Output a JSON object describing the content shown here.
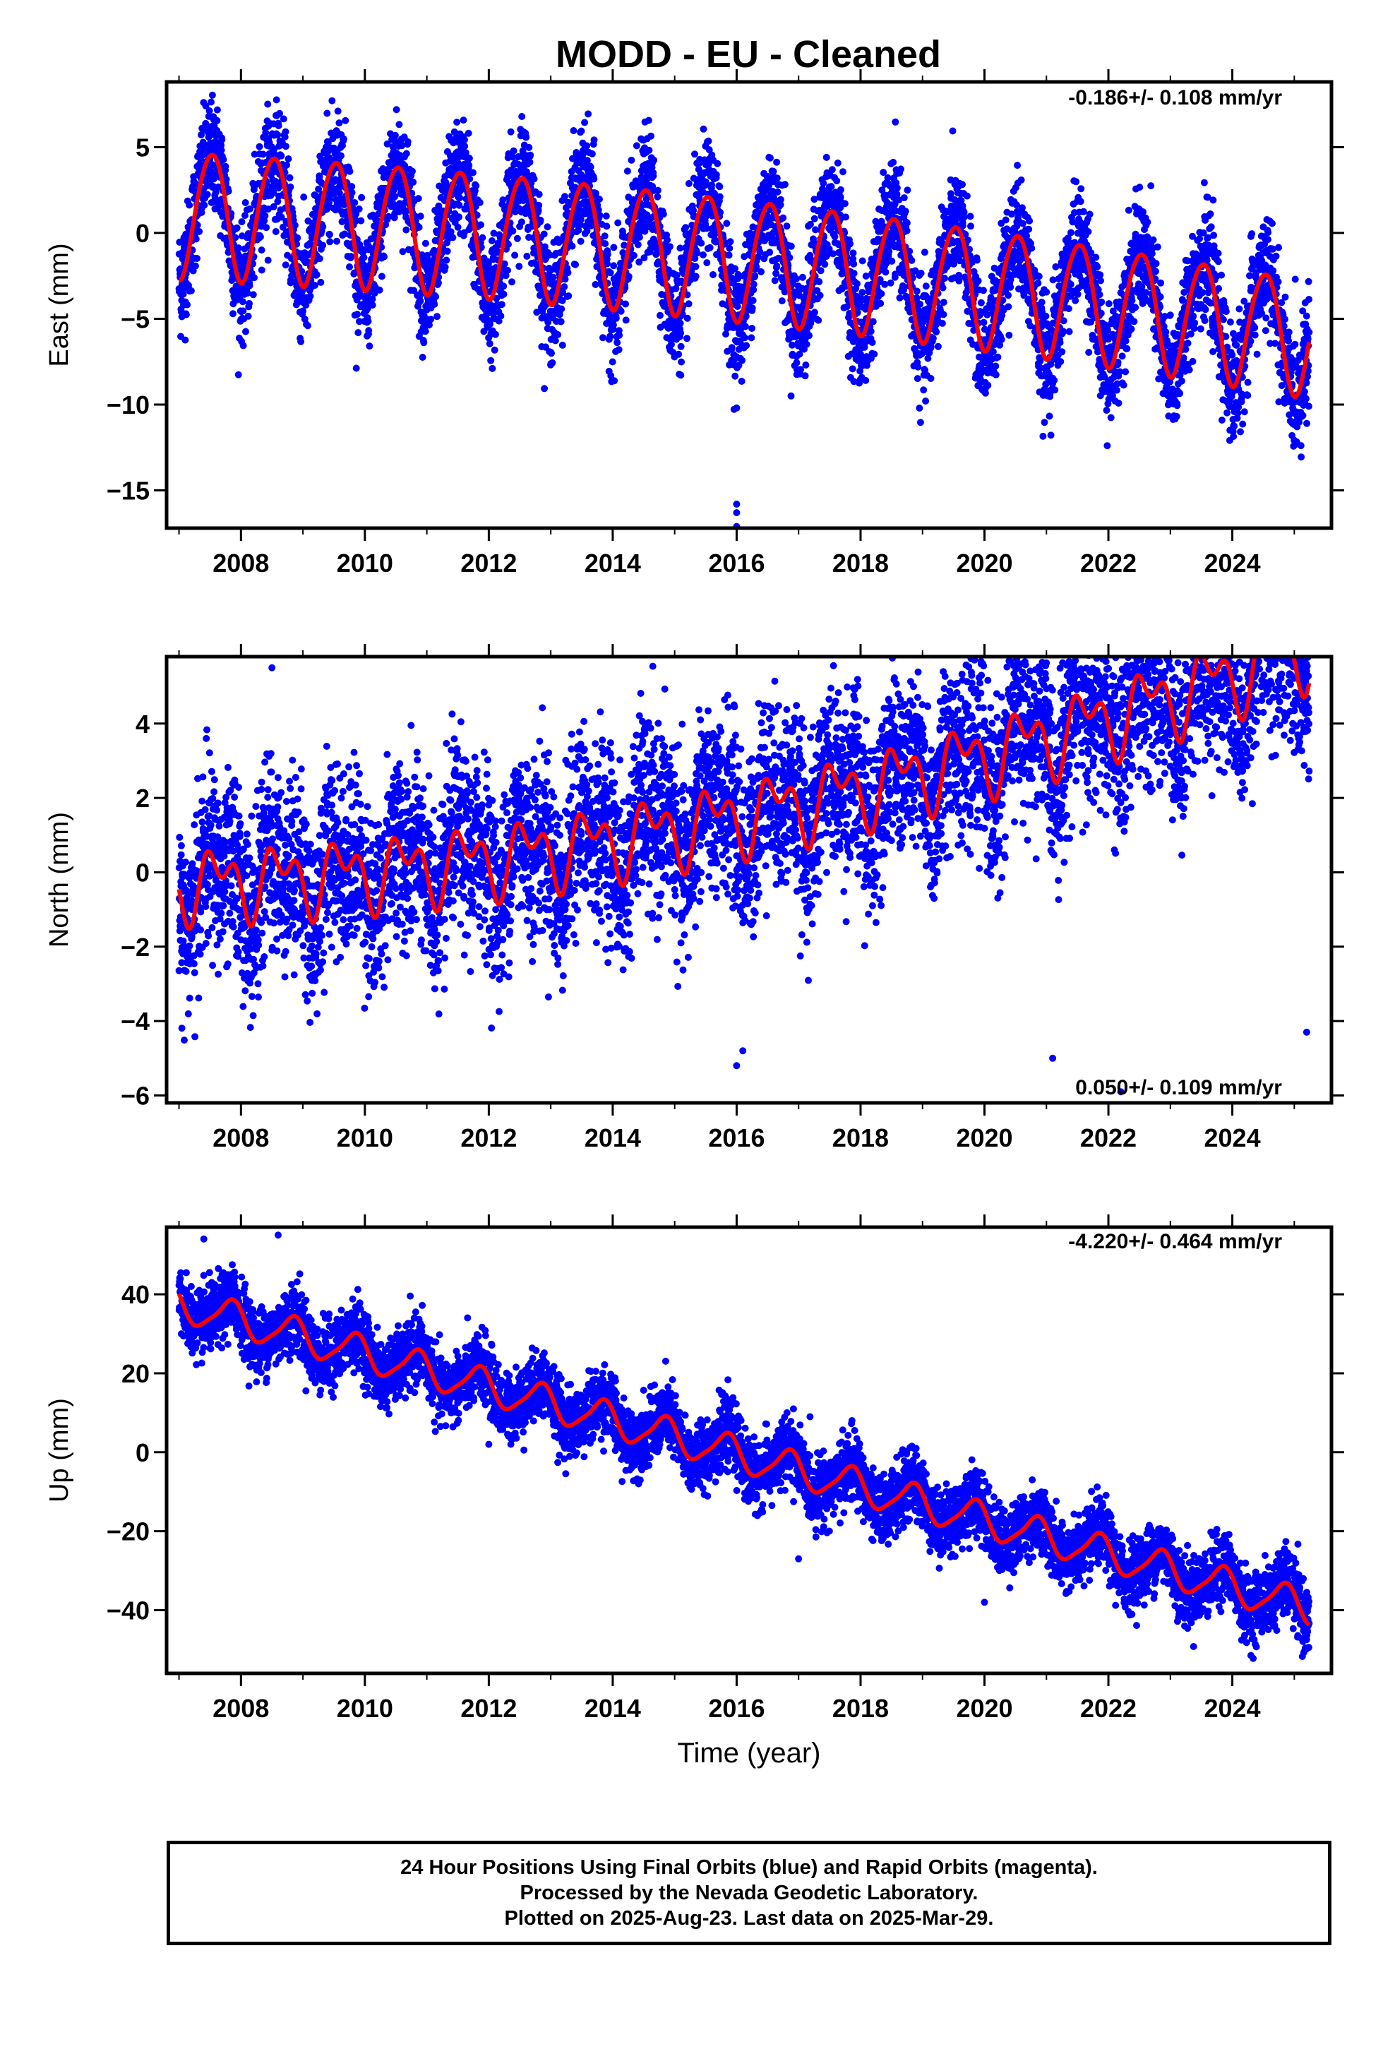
{
  "title": "MODD  - EU - Cleaned",
  "colors": {
    "data_points": "#0000ff",
    "model_curve": "#ff0000",
    "frame": "#000000",
    "rapid_points": "#ff00ff"
  },
  "chart_data": [
    {
      "type": "scatter",
      "component": "East",
      "ylabel": "East (mm)",
      "xlabel": "",
      "xlim": [
        2006.8,
        2025.6
      ],
      "ylim": [
        -17.2,
        8.8
      ],
      "xticks": [
        2008,
        2010,
        2012,
        2014,
        2016,
        2018,
        2020,
        2022,
        2024
      ],
      "yticks": [
        -15,
        -10,
        -5,
        0,
        5
      ],
      "rate_label": "-0.186+/- 0.108 mm/yr",
      "model": {
        "t0": 2007.0,
        "t1": 2025.24,
        "offset": 1.2,
        "trend_start": -0.186,
        "trend_change": -0.42,
        "annual_amp_start": 3.7,
        "annual_amp_end": 3.4,
        "annual_phase": 0.27,
        "semiannual_amp": 0.3,
        "semiannual_phase": 0.1
      },
      "scatter": {
        "noise_sd": 1.6,
        "outliers": [
          [
            2014.1,
            -6.8
          ],
          [
            2016.0,
            -10.2
          ],
          [
            2016.0,
            -15.8
          ],
          [
            2016.0,
            -16.3
          ],
          [
            2016.0,
            -17.1
          ]
        ]
      },
      "series": [
        {
          "name": "Final Orbits (blue)",
          "kind": "points"
        },
        {
          "name": "model",
          "kind": "curve"
        }
      ]
    },
    {
      "type": "scatter",
      "component": "North",
      "ylabel": "North (mm)",
      "xlabel": "",
      "xlim": [
        2006.8,
        2025.6
      ],
      "ylim": [
        -6.2,
        5.8
      ],
      "xticks": [
        2008,
        2010,
        2012,
        2014,
        2016,
        2018,
        2020,
        2022,
        2024
      ],
      "yticks": [
        -6,
        -4,
        -2,
        0,
        2,
        4
      ],
      "rate_label": "0.050+/- 0.109 mm/yr",
      "model": {
        "t0": 2007.0,
        "t1": 2025.24,
        "offset": -0.3,
        "trend_start": 0.05,
        "trend_change": 0.6,
        "annual_amp_start": 0.7,
        "annual_amp_end": 0.8,
        "annual_phase": 0.38,
        "semiannual_amp": 0.55,
        "semiannual_phase": 0.3
      },
      "scatter": {
        "noise_sd": 1.2,
        "outliers": [
          [
            2008.5,
            5.5
          ],
          [
            2016.0,
            -5.2
          ],
          [
            2016.1,
            -4.8
          ],
          [
            2021.1,
            -5.0
          ],
          [
            2022.2,
            -5.9
          ],
          [
            2024.5,
            4.3
          ],
          [
            2025.2,
            -4.3
          ]
        ]
      },
      "series": [
        {
          "name": "Final Orbits (blue)",
          "kind": "points"
        },
        {
          "name": "model",
          "kind": "curve"
        }
      ]
    },
    {
      "type": "scatter",
      "component": "Up",
      "ylabel": "Up (mm)",
      "xlabel": "Time (year)",
      "xlim": [
        2006.8,
        2025.6
      ],
      "ylim": [
        -56,
        57
      ],
      "xticks": [
        2008,
        2010,
        2012,
        2014,
        2016,
        2018,
        2020,
        2022,
        2024
      ],
      "yticks": [
        -40,
        -20,
        0,
        20,
        40
      ],
      "rate_label": "-4.220+/- 0.464 mm/yr",
      "model": {
        "t0": 2007.0,
        "t1": 2025.24,
        "offset": 37.5,
        "trend_start": -4.22,
        "trend_change": 0.0,
        "annual_amp_start": 4.3,
        "annual_amp_end": 4.3,
        "annual_phase": 0.58,
        "semiannual_amp": 0.9,
        "semiannual_phase": 0.3
      },
      "scatter": {
        "noise_sd": 4.2,
        "outliers": [
          [
            2008.6,
            55
          ],
          [
            2007.4,
            54
          ],
          [
            2012.0,
            2
          ],
          [
            2017.0,
            -27
          ],
          [
            2020.0,
            -38
          ]
        ]
      },
      "series": [
        {
          "name": "Final Orbits (blue)",
          "kind": "points"
        },
        {
          "name": "model",
          "kind": "curve"
        }
      ]
    }
  ],
  "footer": {
    "line1": "24 Hour Positions Using Final Orbits (blue) and Rapid Orbits (magenta).",
    "line2": "Processed by the Nevada Geodetic Laboratory.",
    "line3": "Plotted on 2025-Aug-23. Last data on 2025-Mar-29."
  }
}
